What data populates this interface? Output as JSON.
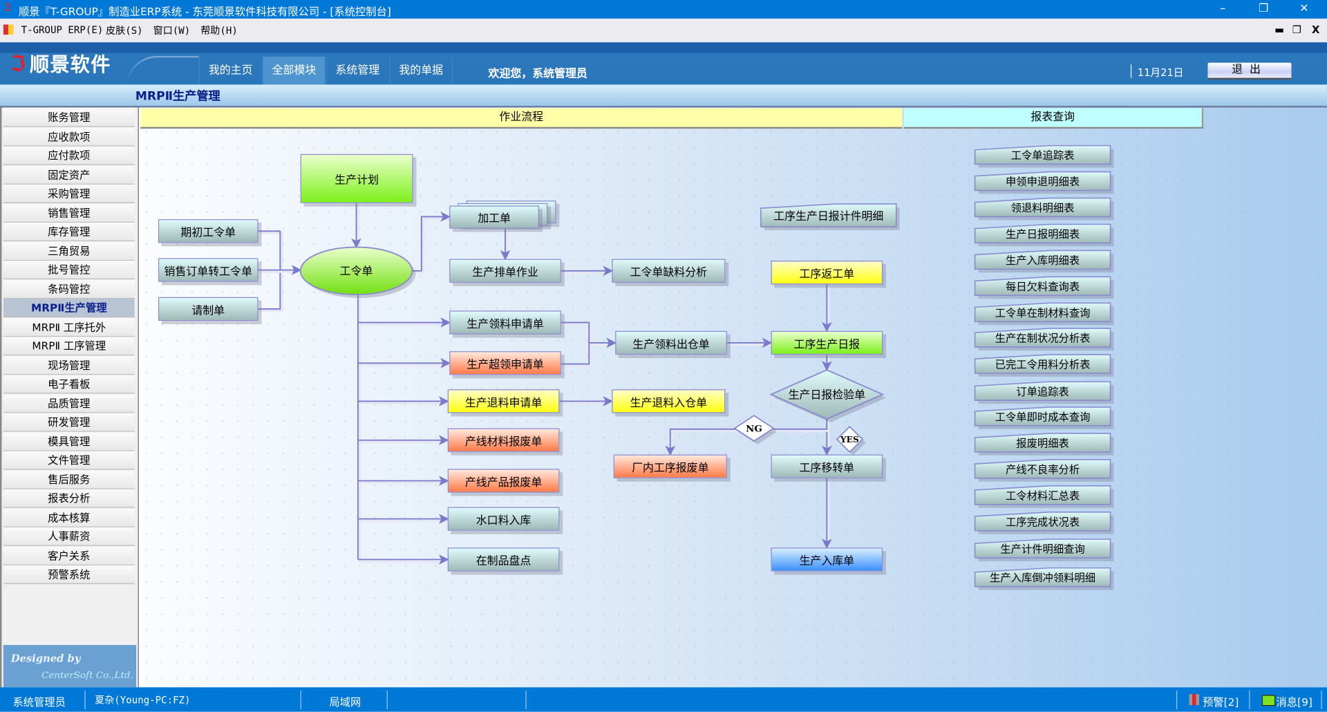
{
  "window": {
    "title": "顺景『T-GROUP』制造业ERP系统 - 东莞顺景软件科技有限公司 - [系统控制台]",
    "minimize": "–",
    "restore": "❐",
    "close": "✕"
  },
  "menu": {
    "items": [
      "T-GROUP ERP(E)",
      "皮肤(S)",
      "窗口(W)",
      "帮助(H)"
    ],
    "mdi_min": "▬",
    "mdi_restore": "❐",
    "mdi_close": "X"
  },
  "header": {
    "logo": "顺景软件",
    "nav": [
      "我的主页",
      "全部模块",
      "系统管理",
      "我的单据"
    ],
    "active_nav": "全部模块",
    "welcome": "欢迎您，系统管理员",
    "date": "11月21日",
    "exit": "退出"
  },
  "subheader": {
    "title": "MRPⅡ生产管理"
  },
  "sidebar": {
    "items": [
      "账务管理",
      "应收款项",
      "应付款项",
      "固定资产",
      "采购管理",
      "销售管理",
      "库存管理",
      "三角贸易",
      "批号管控",
      "条码管控",
      "MRPⅡ生产管理",
      "MRPⅡ 工序托外",
      "MRPⅡ 工序管理",
      "现场管理",
      "电子看板",
      "品质管理",
      "研发管理",
      "模具管理",
      "文件管理",
      "售后服务",
      "报表分析",
      "成本核算",
      "人事薪资",
      "客户关系",
      "预警系统"
    ],
    "active": "MRPⅡ生产管理",
    "designed_by": "Designed by",
    "company": "CenterSoft Co.,Ltd."
  },
  "tabs": {
    "flow": "作业流程",
    "report": "报表查询"
  },
  "flow": {
    "nodes": {
      "plan": "生产计划",
      "initial_wo": "期初工令单",
      "so_to_wo": "销售订单转工令单",
      "request_make": "请制单",
      "work_order": "工令单",
      "processing": "加工单",
      "scheduling": "生产排单作业",
      "shortage": "工令单缺料分析",
      "pick_request": "生产领料申请单",
      "over_pick": "生产超领申请单",
      "return_request": "生产退料申请单",
      "line_material_scrap": "产线材料报废单",
      "line_product_scrap": "产线产品报废单",
      "sprue_in": "水口料入库",
      "wip_count": "在制品盘点",
      "pick_out": "生产领料出仓单",
      "return_in": "生产退料入仓单",
      "inhouse_scrap": "厂内工序报废单",
      "piece_detail": "工序生产日报计件明细",
      "rework": "工序返工单",
      "daily_report": "工序生产日报",
      "inspection": "生产日报检验单",
      "ng": "NG",
      "yes": "YES",
      "transfer": "工序移转单",
      "stock_in": "生产入库单"
    }
  },
  "reports": [
    "工令单追踪表",
    "申领申退明细表",
    "领退料明细表",
    "生产日报明细表",
    "生产入库明细表",
    "每日欠料查询表",
    "工令单在制材料查询",
    "生产在制状况分析表",
    "已完工令用料分析表",
    "订单追踪表",
    "工令单即时成本查询",
    "报废明细表",
    "产线不良率分析",
    "工令材料汇总表",
    "工序完成状况表",
    "生产计件明细查询",
    "生产入库倒冲领料明细"
  ],
  "status": {
    "user": "系统管理员",
    "machine": "夏杂(Young-PC:FZ)",
    "network": "局域网",
    "alerts": "预警[2]",
    "messages": "消息[9]"
  }
}
